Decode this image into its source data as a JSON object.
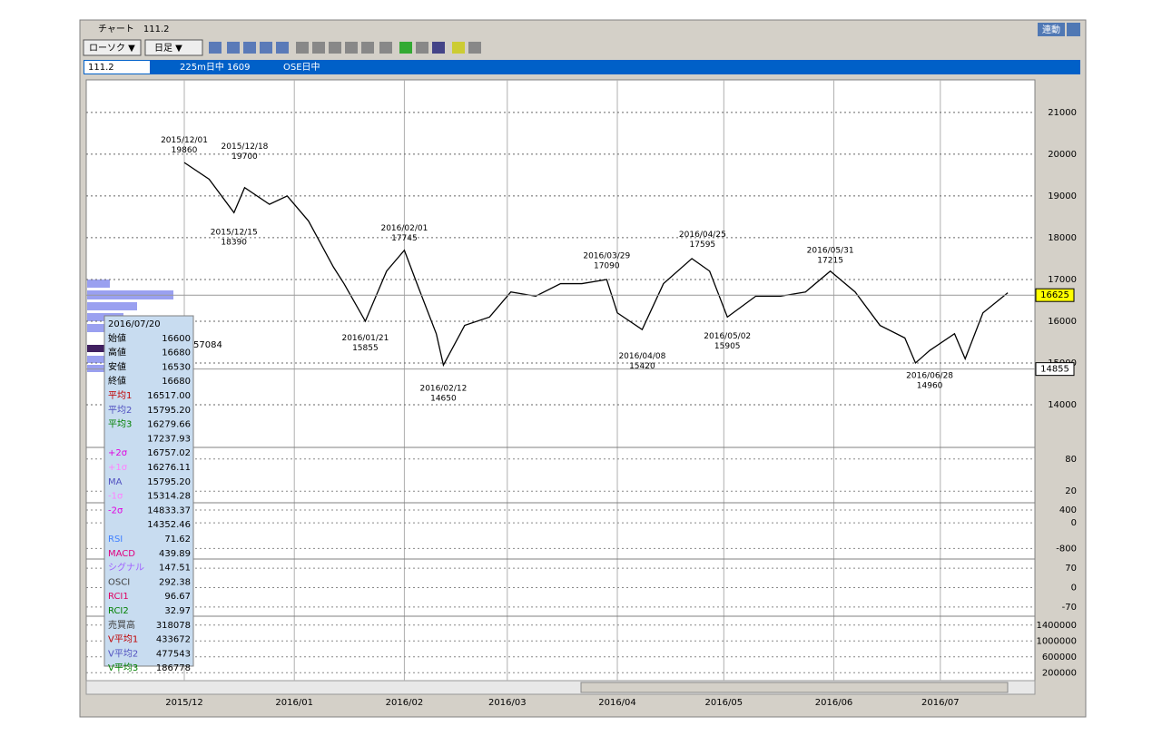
{
  "window": {
    "title": "チャート　111.2",
    "link_button": "連動"
  },
  "toolbar": {
    "chart_style": "ローソク ▼",
    "period": "日足 ▼"
  },
  "info_bar": {
    "code": "111.2",
    "symbol": "225m日中 1609",
    "market": "OSE日中"
  },
  "chart_data": {
    "type": "line",
    "x": [
      "2015/12/01",
      "2015/12/08",
      "2015/12/15",
      "2015/12/18",
      "2015/12/25",
      "2015/12/30",
      "2016/01/05",
      "2016/01/12",
      "2016/01/15",
      "2016/01/21",
      "2016/01/27",
      "2016/02/01",
      "2016/02/05",
      "2016/02/10",
      "2016/02/12",
      "2016/02/18",
      "2016/02/25",
      "2016/03/02",
      "2016/03/09",
      "2016/03/16",
      "2016/03/22",
      "2016/03/29",
      "2016/04/01",
      "2016/04/08",
      "2016/04/14",
      "2016/04/22",
      "2016/04/27",
      "2016/05/02",
      "2016/05/10",
      "2016/05/17",
      "2016/05/24",
      "2016/05/31",
      "2016/06/07",
      "2016/06/14",
      "2016/06/21",
      "2016/06/24",
      "2016/06/28",
      "2016/07/05",
      "2016/07/08",
      "2016/07/13",
      "2016/07/20"
    ],
    "series": [
      {
        "color": "#000000",
        "values": [
          19800,
          19400,
          18600,
          19200,
          18800,
          19000,
          18400,
          17300,
          16900,
          16000,
          17200,
          17700,
          16800,
          15700,
          14950,
          15900,
          16100,
          16700,
          16600,
          16900,
          16900,
          17000,
          16200,
          15800,
          16900,
          17500,
          17200,
          16100,
          16600,
          16600,
          16700,
          17200,
          16700,
          15900,
          15600,
          15000,
          15300,
          15700,
          15100,
          16200,
          16680
        ]
      }
    ],
    "ylim": [
      13000,
      21780
    ],
    "yticks": [
      14000,
      15000,
      16000,
      17000,
      18000,
      19000,
      20000,
      21000
    ],
    "xlabels": [
      "2015/12",
      "2016/01",
      "2016/02",
      "2016/03",
      "2016/04",
      "2016/05",
      "2016/06",
      "2016/07"
    ],
    "annotations": [
      {
        "date": "2015/12/01",
        "value": 19860,
        "kind": "high"
      },
      {
        "date": "2015/12/18",
        "value": 19700,
        "kind": "high"
      },
      {
        "date": "2015/12/15",
        "value": 18390,
        "kind": "low"
      },
      {
        "date": "2016/01/21",
        "value": 15855,
        "kind": "low"
      },
      {
        "date": "2016/02/01",
        "value": 17745,
        "kind": "high"
      },
      {
        "date": "2016/02/12",
        "value": 14650,
        "kind": "low"
      },
      {
        "date": "2016/03/29",
        "value": 17090,
        "kind": "high"
      },
      {
        "date": "2016/04/08",
        "value": 15420,
        "kind": "low"
      },
      {
        "date": "2016/04/25",
        "value": 17595,
        "kind": "high"
      },
      {
        "date": "2016/05/02",
        "value": 15905,
        "kind": "low"
      },
      {
        "date": "2016/05/31",
        "value": 17215,
        "kind": "high"
      },
      {
        "date": "2016/06/28",
        "value": 14960,
        "kind": "low"
      }
    ],
    "price_markers": [
      {
        "value": 16625,
        "color": "#ffff00"
      },
      {
        "value": 14855,
        "color": "#ffffff"
      }
    ],
    "profile_label": "57084",
    "panels": [
      {
        "ylim": [
          0,
          100
        ],
        "yticks": [
          20,
          80
        ]
      },
      {
        "ylim": [
          -1100,
          600
        ],
        "yticks": [
          -800,
          0,
          400
        ]
      },
      {
        "ylim": [
          -100,
          100
        ],
        "yticks": [
          -70,
          0,
          70
        ]
      },
      {
        "ylim": [
          0,
          1600000
        ],
        "yticks": [
          200000,
          600000,
          1000000,
          1400000
        ]
      }
    ]
  },
  "info_panel": {
    "rows": [
      {
        "label": "2016/07/20",
        "value": null,
        "color": "#000000"
      },
      {
        "label": "始値",
        "value": "16600",
        "color": "#000000"
      },
      {
        "label": "高値",
        "value": "16680",
        "color": "#000000"
      },
      {
        "label": "安値",
        "value": "16530",
        "color": "#000000"
      },
      {
        "label": "終値",
        "value": "16680",
        "color": "#000000"
      },
      {
        "label": "平均1",
        "value": "16517.00",
        "color": "#c00000"
      },
      {
        "label": "平均2",
        "value": "15795.20",
        "color": "#5050c0"
      },
      {
        "label": "平均3",
        "value": "16279.66",
        "color": "#008000"
      },
      {
        "label": null,
        "value": "17237.93",
        "color": "#000000"
      },
      {
        "label": "+2σ",
        "value": "16757.02",
        "color": "#e000e0"
      },
      {
        "label": "+1σ",
        "value": "16276.11",
        "color": "#ff80ff"
      },
      {
        "label": "MA",
        "value": "15795.20",
        "color": "#5050c0"
      },
      {
        "label": "-1σ",
        "value": "15314.28",
        "color": "#ff80ff"
      },
      {
        "label": "-2σ",
        "value": "14833.37",
        "color": "#e000e0"
      },
      {
        "label": null,
        "value": "14352.46",
        "color": "#000000"
      },
      {
        "label": "RSI",
        "value": "71.62",
        "color": "#4080ff"
      },
      {
        "label": "MACD",
        "value": "439.89",
        "color": "#e00080"
      },
      {
        "label": "シグナル",
        "value": "147.51",
        "color": "#a060ff"
      },
      {
        "label": "OSCI",
        "value": "292.38",
        "color": "#404040"
      },
      {
        "label": "RCI1",
        "value": "96.67",
        "color": "#e00060"
      },
      {
        "label": "RCI2",
        "value": "32.97",
        "color": "#008000"
      },
      {
        "label": "売買高",
        "value": "318078",
        "color": "#404040"
      },
      {
        "label": "V平均1",
        "value": "433672",
        "color": "#c00000"
      },
      {
        "label": "V平均2",
        "value": "477543",
        "color": "#5050c0"
      },
      {
        "label": "V平均3",
        "value": "186778",
        "color": "#008000"
      }
    ]
  }
}
